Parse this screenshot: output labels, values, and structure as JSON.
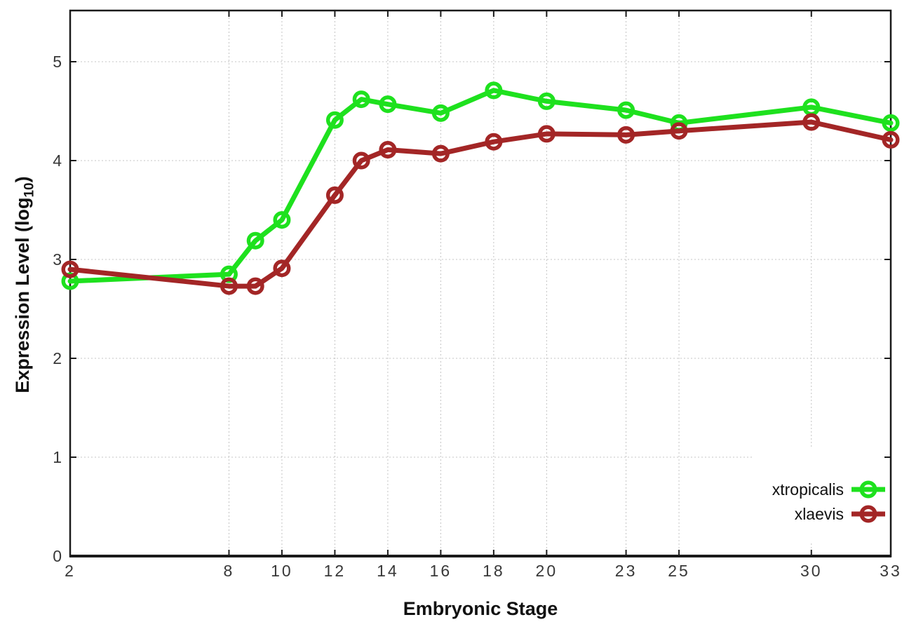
{
  "chart_data": {
    "type": "line",
    "title": "",
    "xlabel": "Embryonic Stage",
    "ylabel": "Expression Level (log10)",
    "ylabel_parts": {
      "main": "Expression Level (log",
      "sub": "10",
      "end": ")"
    },
    "x": [
      2,
      8,
      9,
      10,
      12,
      13,
      14,
      16,
      18,
      20,
      23,
      25,
      30,
      33
    ],
    "x_tick_values": [
      2,
      8,
      10,
      12,
      14,
      16,
      18,
      20,
      23,
      25,
      30,
      33
    ],
    "x_tick_labels": [
      "2",
      "8",
      "10",
      "12",
      "14",
      "16",
      "18",
      "20",
      "23",
      "25",
      "30",
      "33"
    ],
    "y_tick_values": [
      0,
      1,
      2,
      3,
      4,
      5
    ],
    "y_tick_labels": [
      "0",
      "1",
      "2",
      "3",
      "4",
      "5"
    ],
    "xlim": [
      2,
      33
    ],
    "ylim": [
      0,
      5.52
    ],
    "grid": "dotted",
    "legend_position": "inside-bottom-right",
    "legend_opaque": true,
    "series": [
      {
        "name": "xtropicalis",
        "color": "#1ee11e",
        "marker": "open-circle",
        "values": [
          2.78,
          2.85,
          3.19,
          3.4,
          4.41,
          4.62,
          4.57,
          4.48,
          4.71,
          4.6,
          4.51,
          4.38,
          4.54,
          4.38
        ]
      },
      {
        "name": "xlaevis",
        "color": "#a32626",
        "marker": "open-circle",
        "values": [
          2.9,
          2.73,
          2.73,
          2.91,
          3.65,
          4.0,
          4.11,
          4.07,
          4.19,
          4.27,
          4.26,
          4.3,
          4.39,
          4.21
        ]
      }
    ],
    "axis_color": "#1a1a1a",
    "tick_label_color": "#383838",
    "grid_color": "#c4c4c4",
    "background": "#ffffff"
  }
}
